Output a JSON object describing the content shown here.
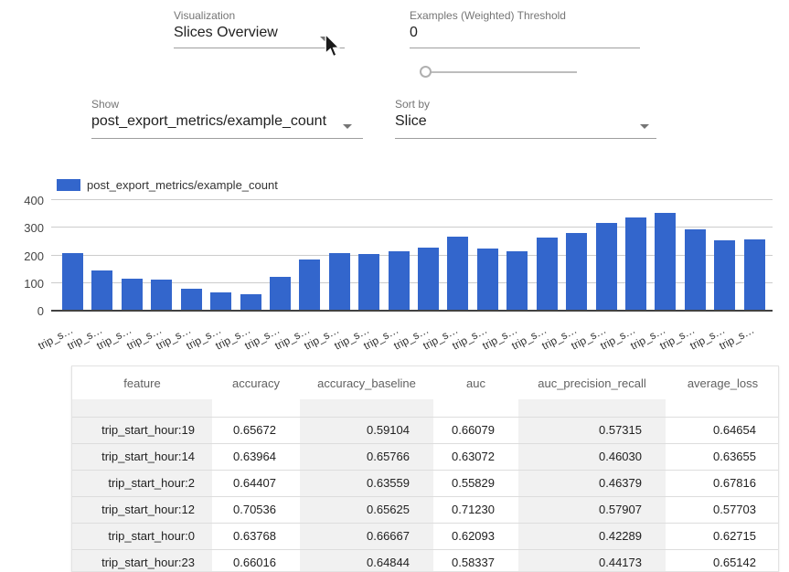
{
  "controls": {
    "visualization": {
      "label": "Visualization",
      "value": "Slices Overview"
    },
    "threshold": {
      "label": "Examples (Weighted) Threshold",
      "value": "0",
      "slider_position": 0
    },
    "show": {
      "label": "Show",
      "value": "post_export_metrics/example_count"
    },
    "sort": {
      "label": "Sort by",
      "value": "Slice"
    }
  },
  "chart_data": {
    "type": "bar",
    "title": "",
    "legend": "post_export_metrics/example_count",
    "legend_position": "top-left",
    "bar_color": "#3366cc",
    "grid": true,
    "ylim": [
      0,
      400
    ],
    "yticks": [
      0,
      100,
      200,
      300,
      400
    ],
    "categories": [
      "trip_s…",
      "trip_s…",
      "trip_s…",
      "trip_s…",
      "trip_s…",
      "trip_s…",
      "trip_s…",
      "trip_s…",
      "trip_s…",
      "trip_s…",
      "trip_s…",
      "trip_s…",
      "trip_s…",
      "trip_s…",
      "trip_s…",
      "trip_s…",
      "trip_s…",
      "trip_s…",
      "trip_s…",
      "trip_s…",
      "trip_s…",
      "trip_s…",
      "trip_s…",
      "trip_s…"
    ],
    "values": [
      205,
      143,
      113,
      110,
      75,
      63,
      57,
      120,
      181,
      206,
      203,
      213,
      224,
      266,
      220,
      211,
      262,
      277,
      313,
      333,
      351,
      290,
      251,
      255
    ]
  },
  "table": {
    "columns": [
      "feature",
      "accuracy",
      "accuracy_baseline",
      "auc",
      "auc_precision_recall",
      "average_loss"
    ],
    "rows": [
      [
        "trip_start_hour:19",
        "0.65672",
        "0.59104",
        "0.66079",
        "0.57315",
        "0.64654"
      ],
      [
        "trip_start_hour:14",
        "0.63964",
        "0.65766",
        "0.63072",
        "0.46030",
        "0.63655"
      ],
      [
        "trip_start_hour:2",
        "0.64407",
        "0.63559",
        "0.55829",
        "0.46379",
        "0.67816"
      ],
      [
        "trip_start_hour:12",
        "0.70536",
        "0.65625",
        "0.71230",
        "0.57907",
        "0.57703"
      ],
      [
        "trip_start_hour:0",
        "0.63768",
        "0.66667",
        "0.62093",
        "0.42289",
        "0.62715"
      ],
      [
        "trip_start_hour:23",
        "0.66016",
        "0.64844",
        "0.58337",
        "0.44173",
        "0.65142"
      ]
    ]
  }
}
